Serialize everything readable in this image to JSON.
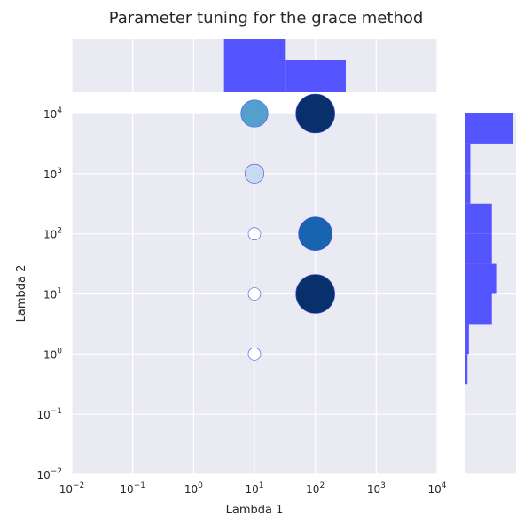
{
  "chart_data": {
    "type": "scatter",
    "title": "Parameter tuning for the grace method",
    "xlabel": "Lambda 1",
    "ylabel": "Lambda 2",
    "x_scale": "log",
    "y_scale": "log",
    "xlim": [
      0.01,
      10000
    ],
    "ylim": [
      0.01,
      10000
    ],
    "tick_exponents": [
      -2,
      -1,
      0,
      1,
      2,
      3,
      4
    ],
    "tick_base": "10",
    "grid": true,
    "points": [
      {
        "x": 10,
        "y": 1,
        "score": 0.0
      },
      {
        "x": 10,
        "y": 10,
        "score": 0.0
      },
      {
        "x": 10,
        "y": 100,
        "score": 0.0
      },
      {
        "x": 10,
        "y": 1000,
        "score": 0.25
      },
      {
        "x": 10,
        "y": 10000,
        "score": 0.55
      },
      {
        "x": 100,
        "y": 10,
        "score": 1.0
      },
      {
        "x": 100,
        "y": 100,
        "score": 0.8
      },
      {
        "x": 100,
        "y": 10000,
        "score": 1.0
      }
    ],
    "marginal_x_histogram": {
      "bins_log10": [
        [
          0.5,
          1.5
        ],
        [
          1.5,
          2.5
        ]
      ],
      "counts": [
        5,
        3
      ]
    },
    "marginal_y_histogram": {
      "bins_log10": [
        [
          -0.5,
          0.0
        ],
        [
          0.0,
          0.5
        ],
        [
          0.5,
          1.0
        ],
        [
          1.0,
          1.5
        ],
        [
          1.5,
          2.0
        ],
        [
          2.0,
          2.5
        ],
        [
          2.5,
          3.0
        ],
        [
          3.0,
          3.5
        ],
        [
          3.5,
          4.0
        ]
      ],
      "counts": [
        0.2,
        0.3,
        1.9,
        2.2,
        1.9,
        1.9,
        0.4,
        0.4,
        3.4
      ]
    },
    "colors": {
      "histogram": "#5555ff",
      "marker_edge": "#4a4ae8",
      "panel_bg": "#eaeaf2",
      "colormap": "Blues"
    }
  }
}
